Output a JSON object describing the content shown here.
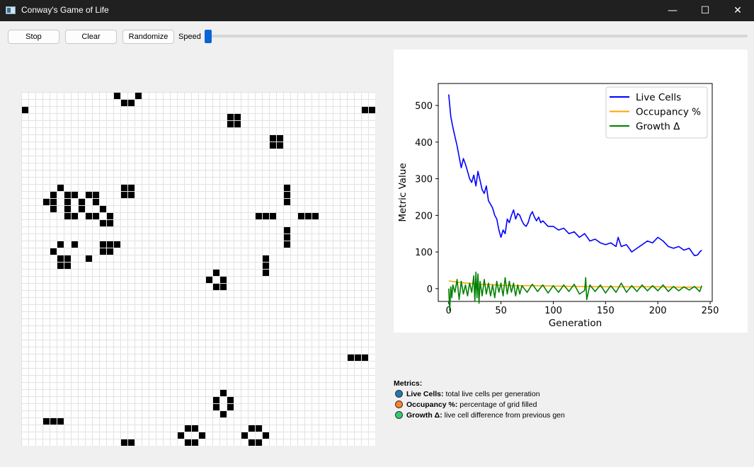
{
  "window": {
    "title": "Conway's Game of Life",
    "icon": "app-icon",
    "controls": {
      "minimize": "—",
      "maximize": "☐",
      "close": "✕"
    }
  },
  "toolbar": {
    "stop_label": "Stop",
    "clear_label": "Clear",
    "randomize_label": "Randomize",
    "speed_label": "Speed",
    "speed_value": 0.0
  },
  "grid": {
    "rows": 50,
    "cols": 50,
    "live_cells": [
      [
        0,
        13
      ],
      [
        0,
        16
      ],
      [
        1,
        14
      ],
      [
        1,
        15
      ],
      [
        2,
        0
      ],
      [
        2,
        48
      ],
      [
        2,
        49
      ],
      [
        3,
        29
      ],
      [
        3,
        30
      ],
      [
        4,
        29
      ],
      [
        4,
        30
      ],
      [
        6,
        35
      ],
      [
        6,
        36
      ],
      [
        7,
        35
      ],
      [
        7,
        36
      ],
      [
        13,
        5
      ],
      [
        13,
        14
      ],
      [
        13,
        15
      ],
      [
        13,
        37
      ],
      [
        14,
        4
      ],
      [
        14,
        6
      ],
      [
        14,
        7
      ],
      [
        14,
        9
      ],
      [
        14,
        10
      ],
      [
        14,
        14
      ],
      [
        14,
        15
      ],
      [
        14,
        37
      ],
      [
        15,
        3
      ],
      [
        15,
        4
      ],
      [
        15,
        6
      ],
      [
        15,
        8
      ],
      [
        15,
        10
      ],
      [
        15,
        37
      ],
      [
        16,
        4
      ],
      [
        16,
        6
      ],
      [
        16,
        8
      ],
      [
        16,
        11
      ],
      [
        17,
        6
      ],
      [
        17,
        7
      ],
      [
        17,
        9
      ],
      [
        17,
        10
      ],
      [
        17,
        12
      ],
      [
        17,
        33
      ],
      [
        17,
        34
      ],
      [
        17,
        35
      ],
      [
        17,
        39
      ],
      [
        17,
        40
      ],
      [
        17,
        41
      ],
      [
        18,
        11
      ],
      [
        18,
        12
      ],
      [
        19,
        37
      ],
      [
        20,
        37
      ],
      [
        21,
        5
      ],
      [
        21,
        7
      ],
      [
        21,
        11
      ],
      [
        21,
        12
      ],
      [
        21,
        13
      ],
      [
        21,
        37
      ],
      [
        22,
        4
      ],
      [
        22,
        11
      ],
      [
        22,
        12
      ],
      [
        23,
        5
      ],
      [
        23,
        6
      ],
      [
        23,
        9
      ],
      [
        23,
        34
      ],
      [
        24,
        5
      ],
      [
        24,
        6
      ],
      [
        24,
        34
      ],
      [
        25,
        27
      ],
      [
        25,
        34
      ],
      [
        26,
        26
      ],
      [
        26,
        28
      ],
      [
        27,
        27
      ],
      [
        27,
        28
      ],
      [
        37,
        46
      ],
      [
        37,
        47
      ],
      [
        37,
        48
      ],
      [
        42,
        28
      ],
      [
        43,
        27
      ],
      [
        43,
        29
      ],
      [
        44,
        27
      ],
      [
        44,
        29
      ],
      [
        45,
        28
      ],
      [
        46,
        3
      ],
      [
        46,
        4
      ],
      [
        46,
        5
      ],
      [
        47,
        23
      ],
      [
        47,
        24
      ],
      [
        47,
        32
      ],
      [
        47,
        33
      ],
      [
        48,
        22
      ],
      [
        48,
        25
      ],
      [
        48,
        31
      ],
      [
        48,
        34
      ],
      [
        49,
        14
      ],
      [
        49,
        15
      ],
      [
        49,
        23
      ],
      [
        49,
        24
      ],
      [
        49,
        32
      ],
      [
        49,
        33
      ]
    ]
  },
  "chart_data": {
    "type": "line",
    "xlabel": "Generation",
    "ylabel": "Metric Value",
    "xlim": [
      -10,
      252
    ],
    "ylim": [
      -35,
      560
    ],
    "xticks": [
      0,
      50,
      100,
      150,
      200,
      250
    ],
    "yticks": [
      0,
      100,
      200,
      300,
      400,
      500
    ],
    "legend_position": "top-right",
    "series": [
      {
        "name": "Live Cells",
        "color": "#0000ff",
        "x": [
          0,
          2,
          4,
          6,
          8,
          10,
          12,
          14,
          16,
          18,
          20,
          22,
          24,
          26,
          28,
          30,
          32,
          34,
          36,
          38,
          40,
          42,
          44,
          46,
          48,
          50,
          52,
          54,
          56,
          58,
          60,
          62,
          64,
          66,
          68,
          70,
          72,
          74,
          76,
          78,
          80,
          82,
          84,
          86,
          88,
          90,
          95,
          100,
          105,
          110,
          115,
          120,
          125,
          130,
          135,
          140,
          145,
          150,
          155,
          160,
          162,
          165,
          170,
          175,
          180,
          185,
          190,
          195,
          200,
          205,
          210,
          215,
          220,
          225,
          230,
          235,
          238,
          240,
          242
        ],
        "values": [
          530,
          470,
          440,
          415,
          390,
          360,
          330,
          355,
          340,
          320,
          300,
          290,
          310,
          280,
          320,
          295,
          270,
          260,
          280,
          240,
          230,
          220,
          200,
          190,
          160,
          140,
          160,
          150,
          190,
          180,
          200,
          215,
          190,
          205,
          200,
          185,
          175,
          170,
          180,
          200,
          210,
          195,
          185,
          195,
          180,
          185,
          170,
          170,
          160,
          165,
          150,
          155,
          140,
          150,
          130,
          135,
          125,
          120,
          125,
          115,
          140,
          115,
          120,
          100,
          110,
          120,
          130,
          125,
          140,
          130,
          115,
          110,
          115,
          105,
          110,
          90,
          92,
          100,
          105
        ]
      },
      {
        "name": "Occupancy %",
        "color": "#ffa500",
        "x": [
          0,
          10,
          20,
          30,
          40,
          50,
          60,
          80,
          100,
          120,
          150,
          180,
          200,
          220,
          242
        ],
        "values": [
          21,
          17,
          14,
          12,
          11,
          9,
          8,
          8,
          7,
          6,
          5,
          5,
          5,
          4,
          4
        ]
      },
      {
        "name": "Growth Δ",
        "color": "#008000",
        "x": [
          0,
          1,
          2,
          3,
          4,
          6,
          8,
          10,
          12,
          14,
          16,
          18,
          20,
          22,
          24,
          25,
          26,
          27,
          28,
          29,
          30,
          32,
          34,
          36,
          38,
          40,
          42,
          44,
          46,
          48,
          50,
          52,
          54,
          56,
          58,
          60,
          62,
          64,
          66,
          68,
          70,
          75,
          80,
          85,
          90,
          95,
          100,
          105,
          110,
          115,
          120,
          125,
          130,
          131,
          132,
          135,
          140,
          145,
          150,
          155,
          160,
          165,
          170,
          175,
          180,
          185,
          190,
          195,
          200,
          205,
          210,
          215,
          220,
          225,
          230,
          235,
          240,
          242
        ],
        "values": [
          0,
          -60,
          5,
          -25,
          10,
          -10,
          25,
          -30,
          20,
          -15,
          10,
          -20,
          15,
          -10,
          35,
          -35,
          45,
          -25,
          40,
          -40,
          20,
          -20,
          25,
          -15,
          15,
          -20,
          10,
          -25,
          20,
          -10,
          15,
          -20,
          30,
          -15,
          20,
          -10,
          15,
          -20,
          10,
          -15,
          8,
          -10,
          12,
          -8,
          10,
          -12,
          8,
          -10,
          10,
          -8,
          12,
          -15,
          -5,
          30,
          -30,
          10,
          -8,
          10,
          -12,
          8,
          -10,
          15,
          -10,
          8,
          -8,
          10,
          -6,
          8,
          -6,
          10,
          -8,
          6,
          -6,
          5,
          -4,
          6,
          -8,
          8
        ]
      }
    ]
  },
  "metrics": {
    "title": "Metrics:",
    "items": [
      {
        "name": "Live Cells:",
        "description": "total live cells per generation",
        "color": "#1f77b4"
      },
      {
        "name": "Occupancy %:",
        "description": "percentage of grid filled",
        "color": "#ff7f2a"
      },
      {
        "name": "Growth Δ:",
        "description": "live cell difference from previous gen",
        "color": "#2ecc71"
      }
    ]
  }
}
